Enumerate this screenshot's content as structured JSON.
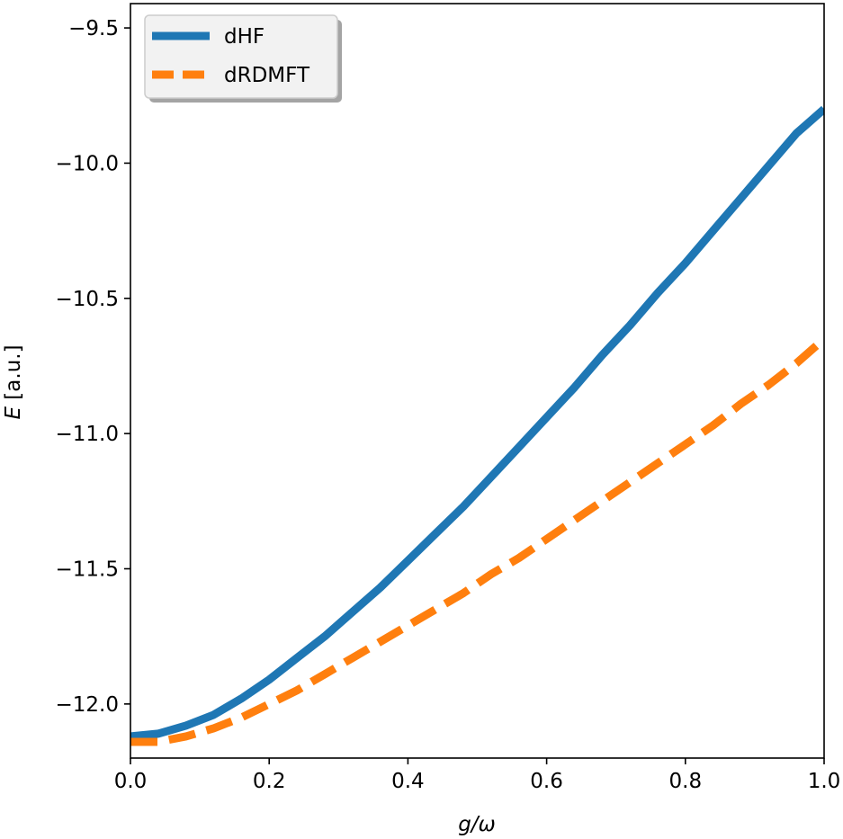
{
  "chart_data": {
    "type": "line",
    "title": "",
    "xlabel": "g/ω",
    "ylabel": "E [a.u.]",
    "ylabel_italic": "E",
    "ylabel_rest": " [a.u.]",
    "xlim": [
      0.0,
      1.0
    ],
    "ylim": [
      -12.2,
      -9.41
    ],
    "xticks": [
      0.0,
      0.2,
      0.4,
      0.6,
      0.8,
      1.0
    ],
    "xtick_labels": [
      "0.0",
      "0.2",
      "0.4",
      "0.6",
      "0.8",
      "1.0"
    ],
    "yticks": [
      -9.5,
      -10.0,
      -10.5,
      -11.0,
      -11.5,
      -12.0
    ],
    "ytick_labels": [
      "−9.5",
      "−10.0",
      "−10.5",
      "−11.0",
      "−11.5",
      "−12.0"
    ],
    "grid": false,
    "legend_position": "top-left",
    "series": [
      {
        "name": "dHF",
        "color": "#1f77b4",
        "style": "solid",
        "x": [
          0.0,
          0.04,
          0.08,
          0.12,
          0.16,
          0.2,
          0.24,
          0.28,
          0.32,
          0.36,
          0.4,
          0.44,
          0.48,
          0.52,
          0.56,
          0.6,
          0.64,
          0.68,
          0.72,
          0.76,
          0.8,
          0.84,
          0.88,
          0.92,
          0.96,
          1.0
        ],
        "y": [
          -12.12,
          -12.11,
          -12.08,
          -12.04,
          -11.98,
          -11.91,
          -11.83,
          -11.75,
          -11.66,
          -11.57,
          -11.47,
          -11.37,
          -11.27,
          -11.16,
          -11.05,
          -10.94,
          -10.83,
          -10.71,
          -10.6,
          -10.48,
          -10.37,
          -10.25,
          -10.13,
          -10.01,
          -9.89,
          -9.8
        ]
      },
      {
        "name": "dRDMFT",
        "color": "#ff7f0e",
        "style": "dashed",
        "x": [
          0.0,
          0.04,
          0.08,
          0.12,
          0.16,
          0.2,
          0.24,
          0.28,
          0.32,
          0.36,
          0.4,
          0.44,
          0.48,
          0.52,
          0.56,
          0.6,
          0.64,
          0.68,
          0.72,
          0.76,
          0.8,
          0.84,
          0.88,
          0.92,
          0.96,
          1.0
        ],
        "y": [
          -12.14,
          -12.14,
          -12.12,
          -12.09,
          -12.05,
          -12.0,
          -11.95,
          -11.89,
          -11.83,
          -11.77,
          -11.71,
          -11.65,
          -11.59,
          -11.52,
          -11.46,
          -11.39,
          -11.32,
          -11.25,
          -11.18,
          -11.11,
          -11.04,
          -10.97,
          -10.89,
          -10.82,
          -10.74,
          -10.65
        ]
      }
    ]
  }
}
